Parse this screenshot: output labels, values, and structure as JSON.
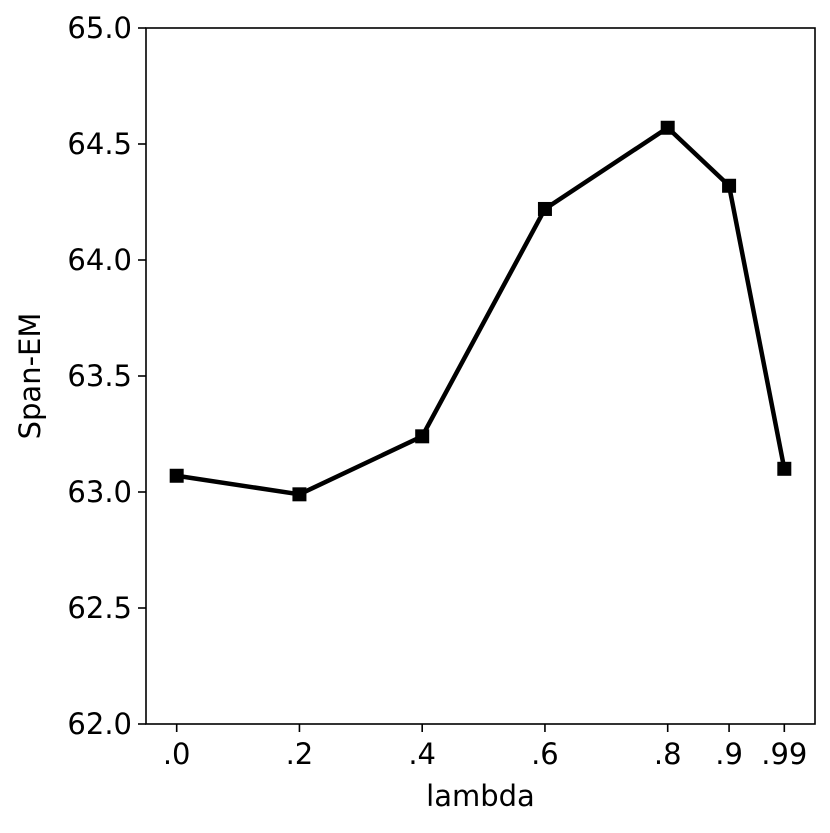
{
  "chart_data": {
    "type": "line",
    "title": "",
    "xlabel": "lambda",
    "ylabel": "Span-EM",
    "categories": [
      ".0",
      ".2",
      ".4",
      ".6",
      ".8",
      ".9",
      ".99"
    ],
    "x": [
      0.0,
      0.2,
      0.4,
      0.6,
      0.8,
      0.9,
      0.99
    ],
    "series": [
      {
        "values": [
          63.07,
          62.99,
          63.24,
          64.22,
          64.57,
          64.32,
          63.1
        ],
        "marker": "square",
        "color": "#000000"
      }
    ],
    "xlim": [
      -0.05,
      1.04
    ],
    "ylim": [
      62.0,
      65.0
    ],
    "yticks": [
      62.0,
      62.5,
      63.0,
      63.5,
      64.0,
      64.5,
      65.0
    ],
    "ytick_labels": [
      "62.0",
      "62.5",
      "63.0",
      "63.5",
      "64.0",
      "64.5",
      "65.0"
    ],
    "grid": false,
    "legend": "none"
  }
}
